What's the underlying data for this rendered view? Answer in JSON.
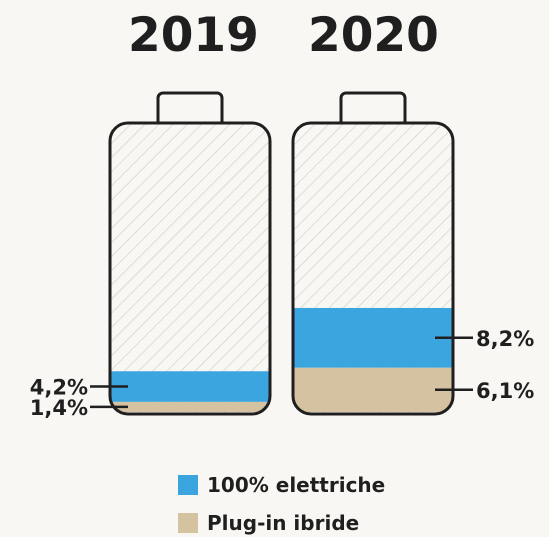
{
  "chart_data": {
    "type": "bar",
    "categories": [
      "2019",
      "2020"
    ],
    "series": [
      {
        "name": "Plug-in ibride",
        "values": [
          1.4,
          6.1
        ],
        "labels": [
          "1,4%",
          "6,1%"
        ],
        "color": "#d5c2a1"
      },
      {
        "name": "100% elettriche",
        "values": [
          4.2,
          8.2
        ],
        "labels": [
          "4,2%",
          "8,2%"
        ],
        "color": "#3aa5df"
      }
    ],
    "stacked": true,
    "ylim": [
      0,
      40
    ]
  },
  "legend": {
    "items": [
      {
        "label": "100% elettriche",
        "color": "#3aa5df"
      },
      {
        "label": "Plug-in ibride",
        "color": "#d5c2a1"
      }
    ]
  }
}
